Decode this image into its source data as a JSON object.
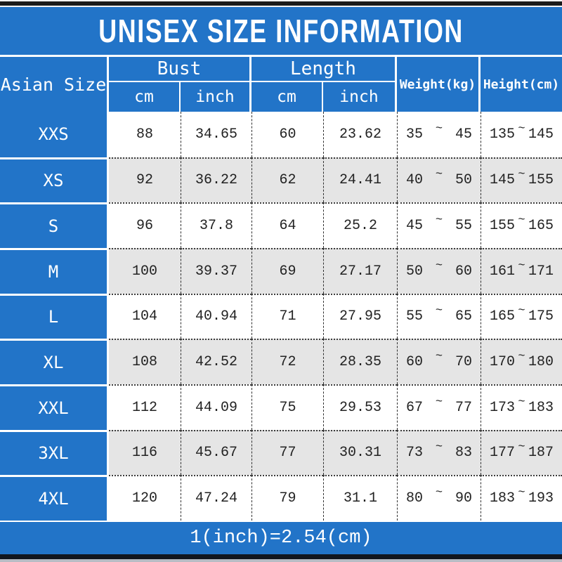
{
  "title": "UNISEX SIZE INFORMATION",
  "footer": {
    "conversion_note": "1(inch)=2.54(cm)"
  },
  "colors": {
    "primary_blue": "#2274c8",
    "row_alt_gray": "#e5e5e5",
    "top_bar_black": "#1b1b1b",
    "bottom_bar_navy": "#11161f",
    "bottom_strip_gray": "#b7bcc4",
    "text_white": "#ffffff",
    "data_text": "#222222"
  },
  "table": {
    "tilde": "~",
    "headers": {
      "size_col": "Asian Size",
      "bust_group": "Bust",
      "length_group": "Length",
      "unit_cm": "cm",
      "unit_inch": "inch",
      "weight_col": "Weight(kg)",
      "height_col": "Height(cm)"
    },
    "rows": [
      {
        "size": "XXS",
        "bust_cm": "88",
        "bust_inch": "34.65",
        "length_cm": "60",
        "length_inch": "23.62",
        "weight_min": "35",
        "weight_max": "45",
        "height_min": "135",
        "height_max": "145"
      },
      {
        "size": "XS",
        "bust_cm": "92",
        "bust_inch": "36.22",
        "length_cm": "62",
        "length_inch": "24.41",
        "weight_min": "40",
        "weight_max": "50",
        "height_min": "145",
        "height_max": "155"
      },
      {
        "size": "S",
        "bust_cm": "96",
        "bust_inch": "37.8",
        "length_cm": "64",
        "length_inch": "25.2",
        "weight_min": "45",
        "weight_max": "55",
        "height_min": "155",
        "height_max": "165"
      },
      {
        "size": "M",
        "bust_cm": "100",
        "bust_inch": "39.37",
        "length_cm": "69",
        "length_inch": "27.17",
        "weight_min": "50",
        "weight_max": "60",
        "height_min": "161",
        "height_max": "171"
      },
      {
        "size": "L",
        "bust_cm": "104",
        "bust_inch": "40.94",
        "length_cm": "71",
        "length_inch": "27.95",
        "weight_min": "55",
        "weight_max": "65",
        "height_min": "165",
        "height_max": "175"
      },
      {
        "size": "XL",
        "bust_cm": "108",
        "bust_inch": "42.52",
        "length_cm": "72",
        "length_inch": "28.35",
        "weight_min": "60",
        "weight_max": "70",
        "height_min": "170",
        "height_max": "180"
      },
      {
        "size": "XXL",
        "bust_cm": "112",
        "bust_inch": "44.09",
        "length_cm": "75",
        "length_inch": "29.53",
        "weight_min": "67",
        "weight_max": "77",
        "height_min": "173",
        "height_max": "183"
      },
      {
        "size": "3XL",
        "bust_cm": "116",
        "bust_inch": "45.67",
        "length_cm": "77",
        "length_inch": "30.31",
        "weight_min": "73",
        "weight_max": "83",
        "height_min": "177",
        "height_max": "187"
      },
      {
        "size": "4XL",
        "bust_cm": "120",
        "bust_inch": "47.24",
        "length_cm": "79",
        "length_inch": "31.1",
        "weight_min": "80",
        "weight_max": "90",
        "height_min": "183",
        "height_max": "193"
      }
    ]
  },
  "chart_data": {
    "type": "table",
    "title": "UNISEX SIZE INFORMATION",
    "columns": [
      "Asian Size",
      "Bust cm",
      "Bust inch",
      "Length cm",
      "Length inch",
      "Weight(kg)",
      "Height(cm)"
    ],
    "rows": [
      [
        "XXS",
        "88",
        "34.65",
        "60",
        "23.62",
        "35~45",
        "135~145"
      ],
      [
        "XS",
        "92",
        "36.22",
        "62",
        "24.41",
        "40~50",
        "145~155"
      ],
      [
        "S",
        "96",
        "37.8",
        "64",
        "25.2",
        "45~55",
        "155~165"
      ],
      [
        "M",
        "100",
        "39.37",
        "69",
        "27.17",
        "50~60",
        "161~171"
      ],
      [
        "L",
        "104",
        "40.94",
        "71",
        "27.95",
        "55~65",
        "165~175"
      ],
      [
        "XL",
        "108",
        "42.52",
        "72",
        "28.35",
        "60~70",
        "170~180"
      ],
      [
        "XXL",
        "112",
        "44.09",
        "75",
        "29.53",
        "67~77",
        "173~183"
      ],
      [
        "3XL",
        "116",
        "45.67",
        "77",
        "30.31",
        "73~83",
        "177~187"
      ],
      [
        "4XL",
        "120",
        "47.24",
        "79",
        "31.1",
        "80~90",
        "183~193"
      ]
    ],
    "note": "1(inch)=2.54(cm)",
    "layout": {
      "grid": "off",
      "row_striping": "white/gray alternating",
      "header_style": "blue with white text"
    }
  }
}
